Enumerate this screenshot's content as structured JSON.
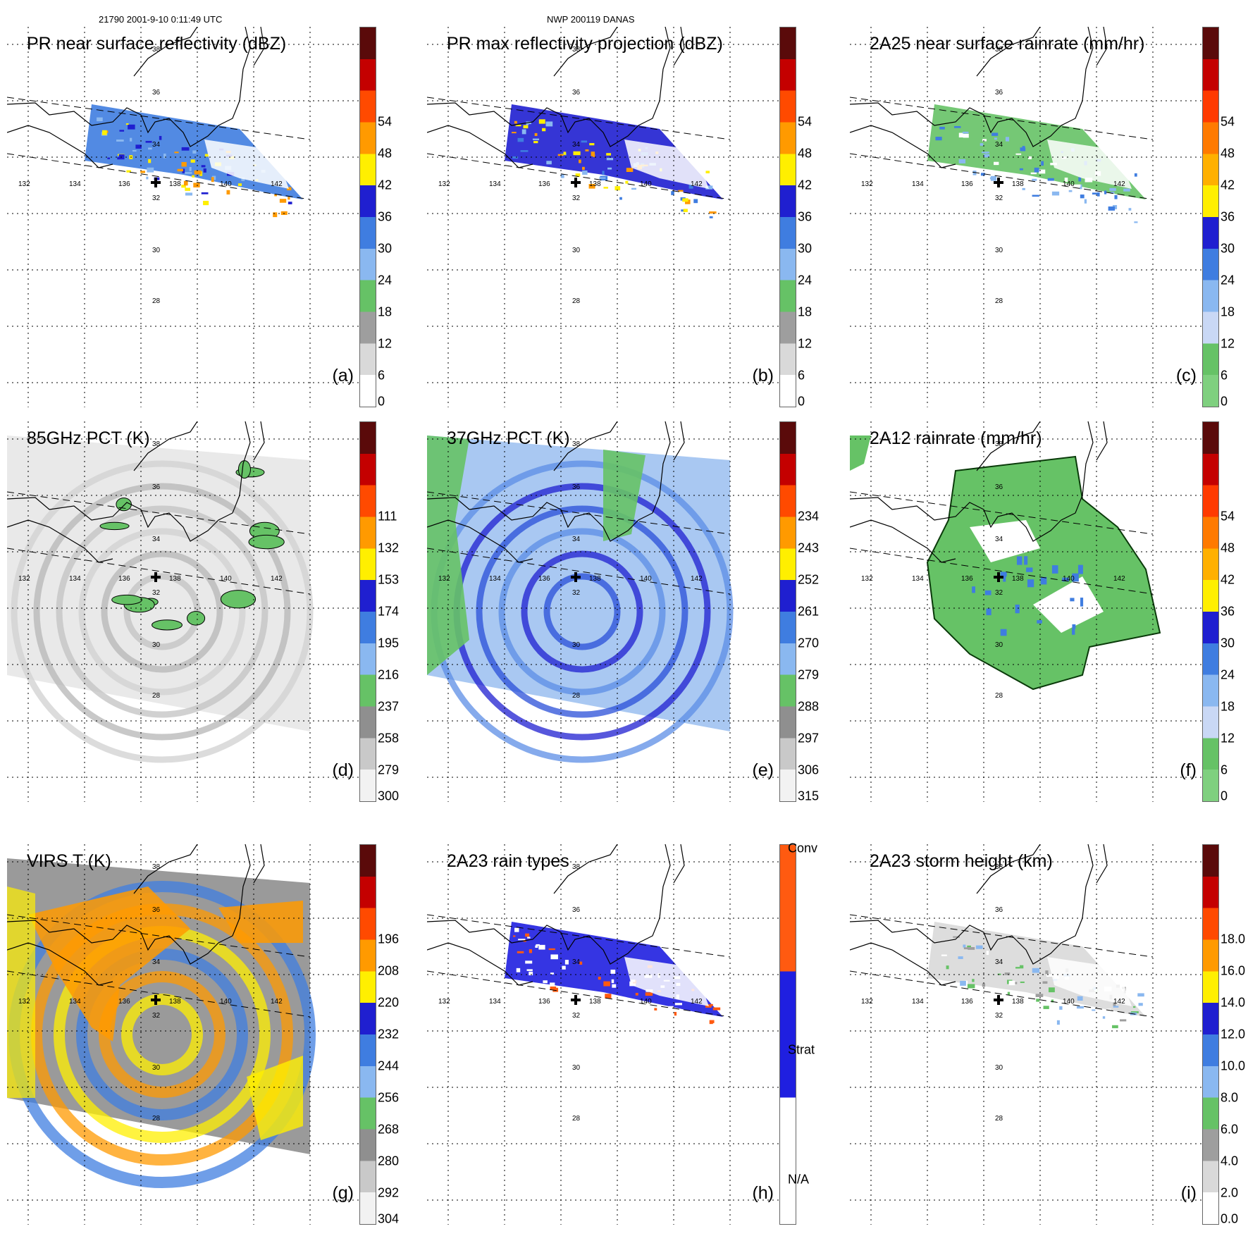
{
  "header": {
    "left": "21790 2001-9-10 0:11:49 UTC",
    "center": "NWP 200119 DANAS"
  },
  "axis_labels": {
    "lon": [
      "132",
      "134",
      "136",
      "138",
      "140",
      "142"
    ],
    "lat": [
      "38",
      "36",
      "34",
      "32",
      "30",
      "28"
    ]
  },
  "panels": [
    {
      "id": "a",
      "title": "PR near surface reflectivity (dBZ)",
      "label": "(a)",
      "colorbar": {
        "ticks": [
          "0",
          "6",
          "12",
          "18",
          "24",
          "30",
          "36",
          "42",
          "48",
          "54"
        ]
      },
      "colors": [
        "#ffffff",
        "#d9d9d9",
        "#9e9e9e",
        "#66c266",
        "#8ab8f0",
        "#3f7de0",
        "#1f1fd0",
        "#ffef00",
        "#ff9a00",
        "#ff4a00",
        "#c40000",
        "#5a0a0a"
      ]
    },
    {
      "id": "b",
      "title": "PR max reflectivity projection (dBZ)",
      "label": "(b)",
      "colorbar": {
        "ticks": [
          "0",
          "6",
          "12",
          "18",
          "24",
          "30",
          "36",
          "42",
          "48",
          "54"
        ]
      },
      "colors": [
        "#ffffff",
        "#d9d9d9",
        "#9e9e9e",
        "#66c266",
        "#8ab8f0",
        "#3f7de0",
        "#1f1fd0",
        "#ffef00",
        "#ff9a00",
        "#ff4a00",
        "#c40000",
        "#5a0a0a"
      ]
    },
    {
      "id": "c",
      "title": "2A25 near surface rainrate (mm/hr)",
      "label": "(c)",
      "colorbar": {
        "ticks": [
          "0",
          "6",
          "12",
          "18",
          "24",
          "30",
          "36",
          "42",
          "48",
          "54"
        ]
      },
      "colors": [
        "#7fd07f",
        "#66c266",
        "#c9d8f5",
        "#8ab8f0",
        "#3f7de0",
        "#1f1fd0",
        "#ffef00",
        "#ffb000",
        "#ff7a00",
        "#ff3a00",
        "#c40000",
        "#5a0a0a"
      ]
    },
    {
      "id": "d",
      "title": "85GHz PCT (K)",
      "label": "(d)",
      "colorbar": {
        "ticks": [
          "300",
          "279",
          "258",
          "237",
          "216",
          "195",
          "174",
          "153",
          "132",
          "111"
        ]
      },
      "colors": [
        "#f2f2f2",
        "#c9c9c9",
        "#8f8f8f",
        "#66c266",
        "#8ab8f0",
        "#3f7de0",
        "#1f1fd0",
        "#ffef00",
        "#ff9a00",
        "#ff4a00",
        "#c40000",
        "#5a0a0a"
      ]
    },
    {
      "id": "e",
      "title": "37GHz PCT (K)",
      "label": "(e)",
      "colorbar": {
        "ticks": [
          "315",
          "306",
          "297",
          "288",
          "279",
          "270",
          "261",
          "252",
          "243",
          "234"
        ]
      },
      "colors": [
        "#f2f2f2",
        "#c9c9c9",
        "#8f8f8f",
        "#66c266",
        "#8ab8f0",
        "#3f7de0",
        "#1f1fd0",
        "#ffef00",
        "#ff9a00",
        "#ff4a00",
        "#c40000",
        "#5a0a0a"
      ]
    },
    {
      "id": "f",
      "title": "2A12 rainrate (mm/hr)",
      "label": "(f)",
      "colorbar": {
        "ticks": [
          "0",
          "6",
          "12",
          "18",
          "24",
          "30",
          "36",
          "42",
          "48",
          "54"
        ]
      },
      "colors": [
        "#7fd07f",
        "#66c266",
        "#c9d8f5",
        "#8ab8f0",
        "#3f7de0",
        "#1f1fd0",
        "#ffef00",
        "#ffb000",
        "#ff7a00",
        "#ff3a00",
        "#c40000",
        "#5a0a0a"
      ]
    },
    {
      "id": "g",
      "title": "VIRS T",
      "title_extra": "(K)",
      "label": "(g)",
      "colorbar": {
        "ticks": [
          "304",
          "292",
          "280",
          "268",
          "256",
          "244",
          "232",
          "220",
          "208",
          "196"
        ]
      },
      "colors": [
        "#f2f2f2",
        "#c9c9c9",
        "#8f8f8f",
        "#66c266",
        "#8ab8f0",
        "#3f7de0",
        "#1f1fd0",
        "#ffef00",
        "#ff9a00",
        "#ff4a00",
        "#c40000",
        "#5a0a0a"
      ]
    },
    {
      "id": "h",
      "title": "2A23 rain types",
      "label": "(h)",
      "colorbar": {
        "ticks": [
          "N/A",
          "Strat",
          "Conv"
        ]
      },
      "colors": [
        "#ffffff",
        "#1f1fe0",
        "#ff5a10"
      ]
    },
    {
      "id": "i",
      "title": "2A23 storm height (km)",
      "label": "(i)",
      "colorbar": {
        "ticks": [
          "0.0",
          "2.0",
          "4.0",
          "6.0",
          "8.0",
          "10.0",
          "12.0",
          "14.0",
          "16.0",
          "18.0"
        ]
      },
      "colors": [
        "#ffffff",
        "#d9d9d9",
        "#9e9e9e",
        "#66c266",
        "#8ab8f0",
        "#3f7de0",
        "#1f1fd0",
        "#ffef00",
        "#ff9a00",
        "#ff4a00",
        "#c40000",
        "#5a0a0a"
      ]
    }
  ]
}
